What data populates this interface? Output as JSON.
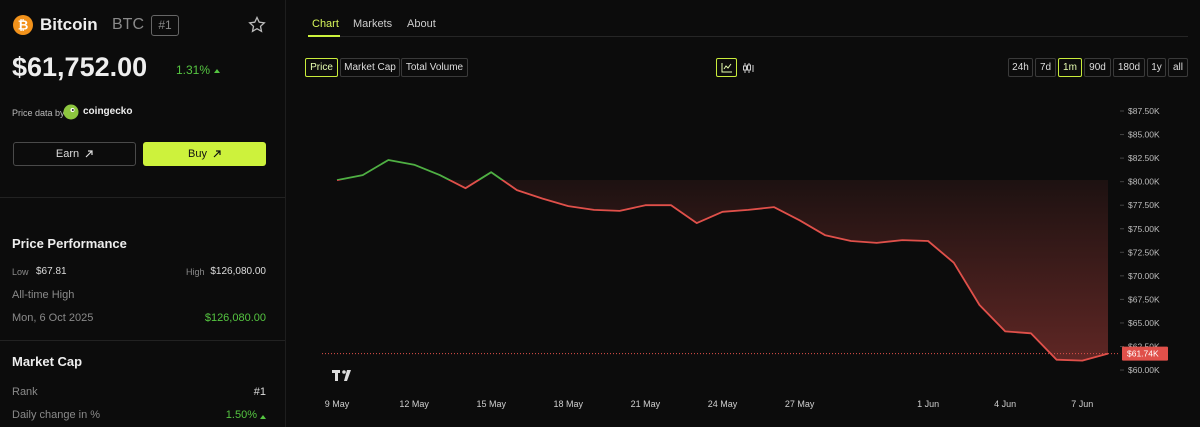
{
  "coin": {
    "name": "Bitcoin",
    "symbol": "BTC",
    "rank_badge": "#1",
    "price": "$61,752.00",
    "change": "1.31%"
  },
  "source": {
    "prefix": "Price data by",
    "name": "coingecko"
  },
  "buttons": {
    "earn": "Earn",
    "buy": "Buy"
  },
  "price_performance": {
    "title": "Price Performance",
    "low_label": "Low",
    "low": "$67.81",
    "high_label": "High",
    "high": "$126,080.00",
    "ath_label": "All-time High",
    "ath_date": "Mon, 6 Oct 2025",
    "ath_value": "$126,080.00"
  },
  "market_cap": {
    "title": "Market Cap",
    "rank_label": "Rank",
    "rank": "#1",
    "daily_change_label": "Daily change in %",
    "daily_change": "1.50%"
  },
  "tabs": [
    "Chart",
    "Markets",
    "About"
  ],
  "metrics": [
    "Price",
    "Market Cap",
    "Total Volume"
  ],
  "ranges": [
    "24h",
    "7d",
    "1m",
    "90d",
    "180d",
    "1y",
    "all"
  ],
  "chart_data": {
    "type": "line",
    "categories": [
      "9 May",
      null,
      null,
      "12 May",
      null,
      null,
      "15 May",
      null,
      null,
      "18 May",
      null,
      null,
      "21 May",
      null,
      null,
      "24 May",
      null,
      null,
      "27 May",
      null,
      null,
      null,
      null,
      "1 Jun",
      null,
      null,
      "4 Jun",
      null,
      null,
      "7 Jun",
      null
    ],
    "values": [
      80170,
      80700,
      82300,
      81800,
      80700,
      79300,
      81000,
      79100,
      78200,
      77400,
      77000,
      76900,
      77500,
      77500,
      75600,
      76800,
      77000,
      77300,
      75900,
      74300,
      73700,
      73500,
      73800,
      73700,
      71400,
      66900,
      64100,
      63900,
      61100,
      61000,
      61740
    ],
    "color_above": "#4fb043",
    "color_below": "#e0504a",
    "ylim": [
      57350,
      89200
    ],
    "yticks": [
      {
        "value": 87500,
        "label": "$87.50K"
      },
      {
        "value": 85000,
        "label": "$85.00K"
      },
      {
        "value": 82500,
        "label": "$82.50K"
      },
      {
        "value": 80000,
        "label": "$80.00K"
      },
      {
        "value": 77500,
        "label": "$77.50K"
      },
      {
        "value": 75000,
        "label": "$75.00K"
      },
      {
        "value": 72500,
        "label": "$72.50K"
      },
      {
        "value": 70000,
        "label": "$70.00K"
      },
      {
        "value": 67500,
        "label": "$67.50K"
      },
      {
        "value": 65000,
        "label": "$65.00K"
      },
      {
        "value": 62500,
        "label": "$62.50K"
      },
      {
        "value": 60000,
        "label": "$60.00K"
      }
    ],
    "price_marker": {
      "value": 61740,
      "label": "$61.74K"
    }
  }
}
